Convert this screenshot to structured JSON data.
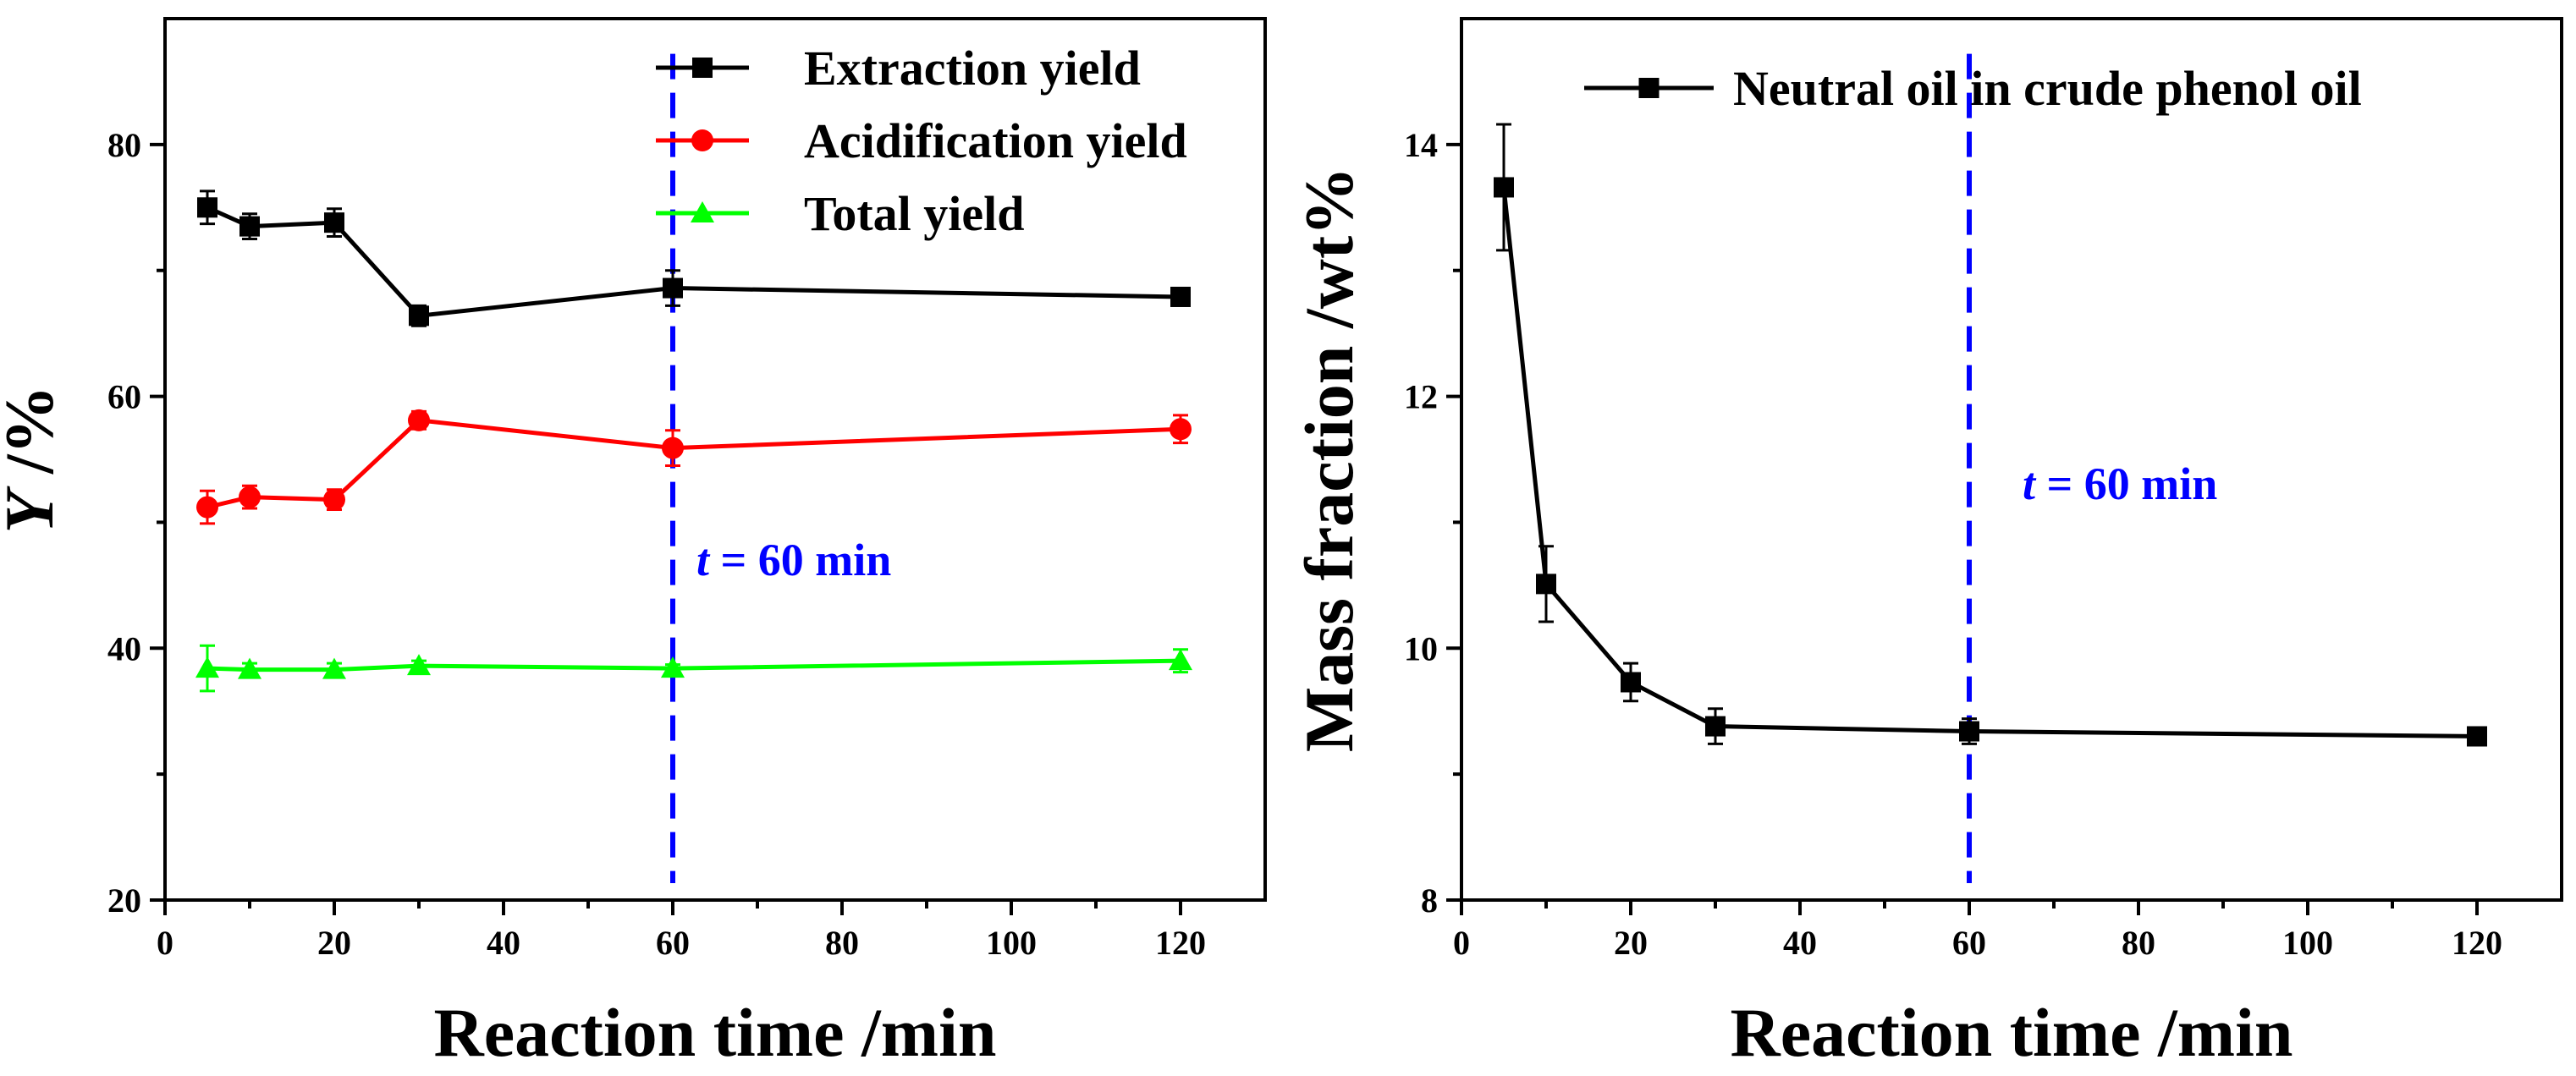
{
  "chart_data": [
    {
      "type": "line",
      "xlabel": "Reaction time /min",
      "ylabel": "Y /%",
      "ylabel_italic": "Y",
      "ylabel_rest": " /%",
      "xlim": [
        0,
        130
      ],
      "ylim": [
        20,
        90
      ],
      "xticks": [
        0,
        20,
        40,
        60,
        80,
        100,
        120
      ],
      "yticks": [
        20,
        40,
        60,
        80
      ],
      "legend_position": "top-right",
      "annotation": {
        "italic": "t",
        "rest": " = 60 min",
        "x": 60,
        "color": "#0000ff"
      },
      "vline": {
        "x": 60,
        "color": "#0000ff",
        "style": "dashed"
      },
      "series": [
        {
          "name": "Extraction yield",
          "color": "#000000",
          "marker": "square",
          "x": [
            5,
            10,
            20,
            30,
            60,
            120
          ],
          "values": [
            75.0,
            73.5,
            73.8,
            66.4,
            68.6,
            67.9
          ],
          "errors": [
            1.3,
            1.0,
            1.1,
            0.8,
            1.4,
            0.5
          ]
        },
        {
          "name": "Acidification yield",
          "color": "#ff0000",
          "marker": "circle",
          "x": [
            5,
            10,
            20,
            30,
            60,
            120
          ],
          "values": [
            51.2,
            52.0,
            51.8,
            58.1,
            55.9,
            57.4
          ],
          "errors": [
            1.3,
            0.9,
            0.8,
            0.7,
            1.4,
            1.1
          ]
        },
        {
          "name": "Total yield",
          "color": "#00ff00",
          "marker": "triangle",
          "x": [
            5,
            10,
            20,
            30,
            60,
            120
          ],
          "values": [
            38.4,
            38.3,
            38.3,
            38.6,
            38.4,
            39.0
          ],
          "errors": [
            1.8,
            0.5,
            0.5,
            0.4,
            0.3,
            0.9
          ]
        }
      ]
    },
    {
      "type": "line",
      "xlabel": "Reaction time /min",
      "ylabel": "Mass fraction /wt%",
      "xlim": [
        0,
        130
      ],
      "ylim": [
        8,
        15
      ],
      "xticks": [
        0,
        20,
        40,
        60,
        80,
        100,
        120
      ],
      "yticks": [
        8,
        10,
        12,
        14
      ],
      "legend_position": "top-right",
      "annotation": {
        "italic": "t",
        "rest": " = 60 min",
        "x": 60,
        "color": "#0000ff"
      },
      "vline": {
        "x": 60,
        "color": "#0000ff",
        "style": "dashed"
      },
      "series": [
        {
          "name": "Neutral oil in crude phenol oil",
          "color": "#000000",
          "marker": "square",
          "x": [
            5,
            10,
            20,
            30,
            60,
            120
          ],
          "values": [
            13.66,
            10.51,
            9.73,
            9.38,
            9.34,
            9.3
          ],
          "errors": [
            0.5,
            0.3,
            0.15,
            0.14,
            0.1,
            0.07
          ]
        }
      ]
    }
  ]
}
